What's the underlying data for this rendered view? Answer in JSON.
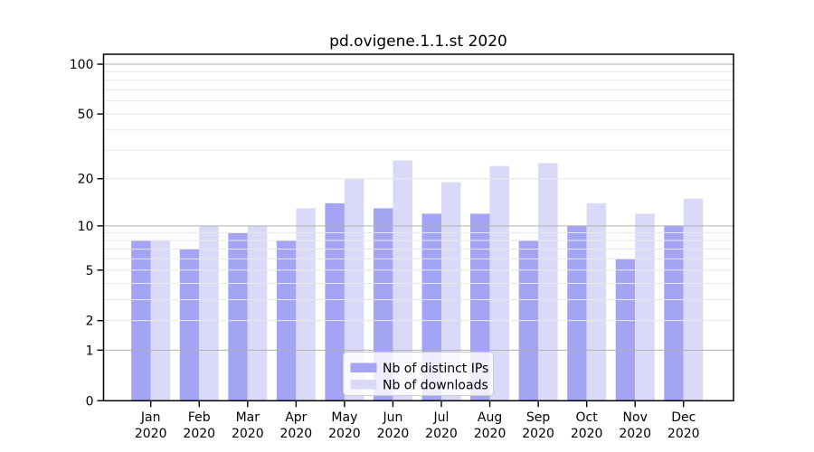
{
  "title": "pd.ovigene.1.1.st 2020",
  "colors": {
    "ip_bar": "#a4a4f4",
    "dl_bar": "#dadaf8",
    "grid_major": "#b0b0b0",
    "grid_minor": "#e8e8e8",
    "axis": "#000000",
    "legend_border": "#cccccc"
  },
  "chart_data": {
    "type": "bar",
    "title": "pd.ovigene.1.1.st 2020",
    "scale": "log1p",
    "categories": [
      "Jan",
      "Feb",
      "Mar",
      "Apr",
      "May",
      "Jun",
      "Jul",
      "Aug",
      "Sep",
      "Oct",
      "Nov",
      "Dec"
    ],
    "category_year": "2020",
    "series": [
      {
        "name": "Nb of distinct IPs",
        "color": "#a4a4f4",
        "values": [
          8,
          7,
          9,
          8,
          14,
          13,
          12,
          12,
          8,
          10,
          6,
          10
        ]
      },
      {
        "name": "Nb of downloads",
        "color": "#dadaf8",
        "values": [
          8,
          10,
          10,
          13,
          20,
          26,
          19,
          24,
          25,
          14,
          12,
          15
        ]
      }
    ],
    "xlabel": "",
    "ylabel": "",
    "y_tick_labels": [
      0,
      1,
      2,
      5,
      10,
      20,
      50,
      100
    ],
    "y_major_gridlines": [
      1,
      10,
      100
    ],
    "y_minor_gridlines": [
      2,
      3,
      4,
      5,
      6,
      7,
      8,
      9,
      20,
      30,
      40,
      50,
      60,
      70,
      80,
      90
    ],
    "ylim": [
      0,
      115
    ],
    "grid": "on",
    "legend_position": "lower center"
  }
}
